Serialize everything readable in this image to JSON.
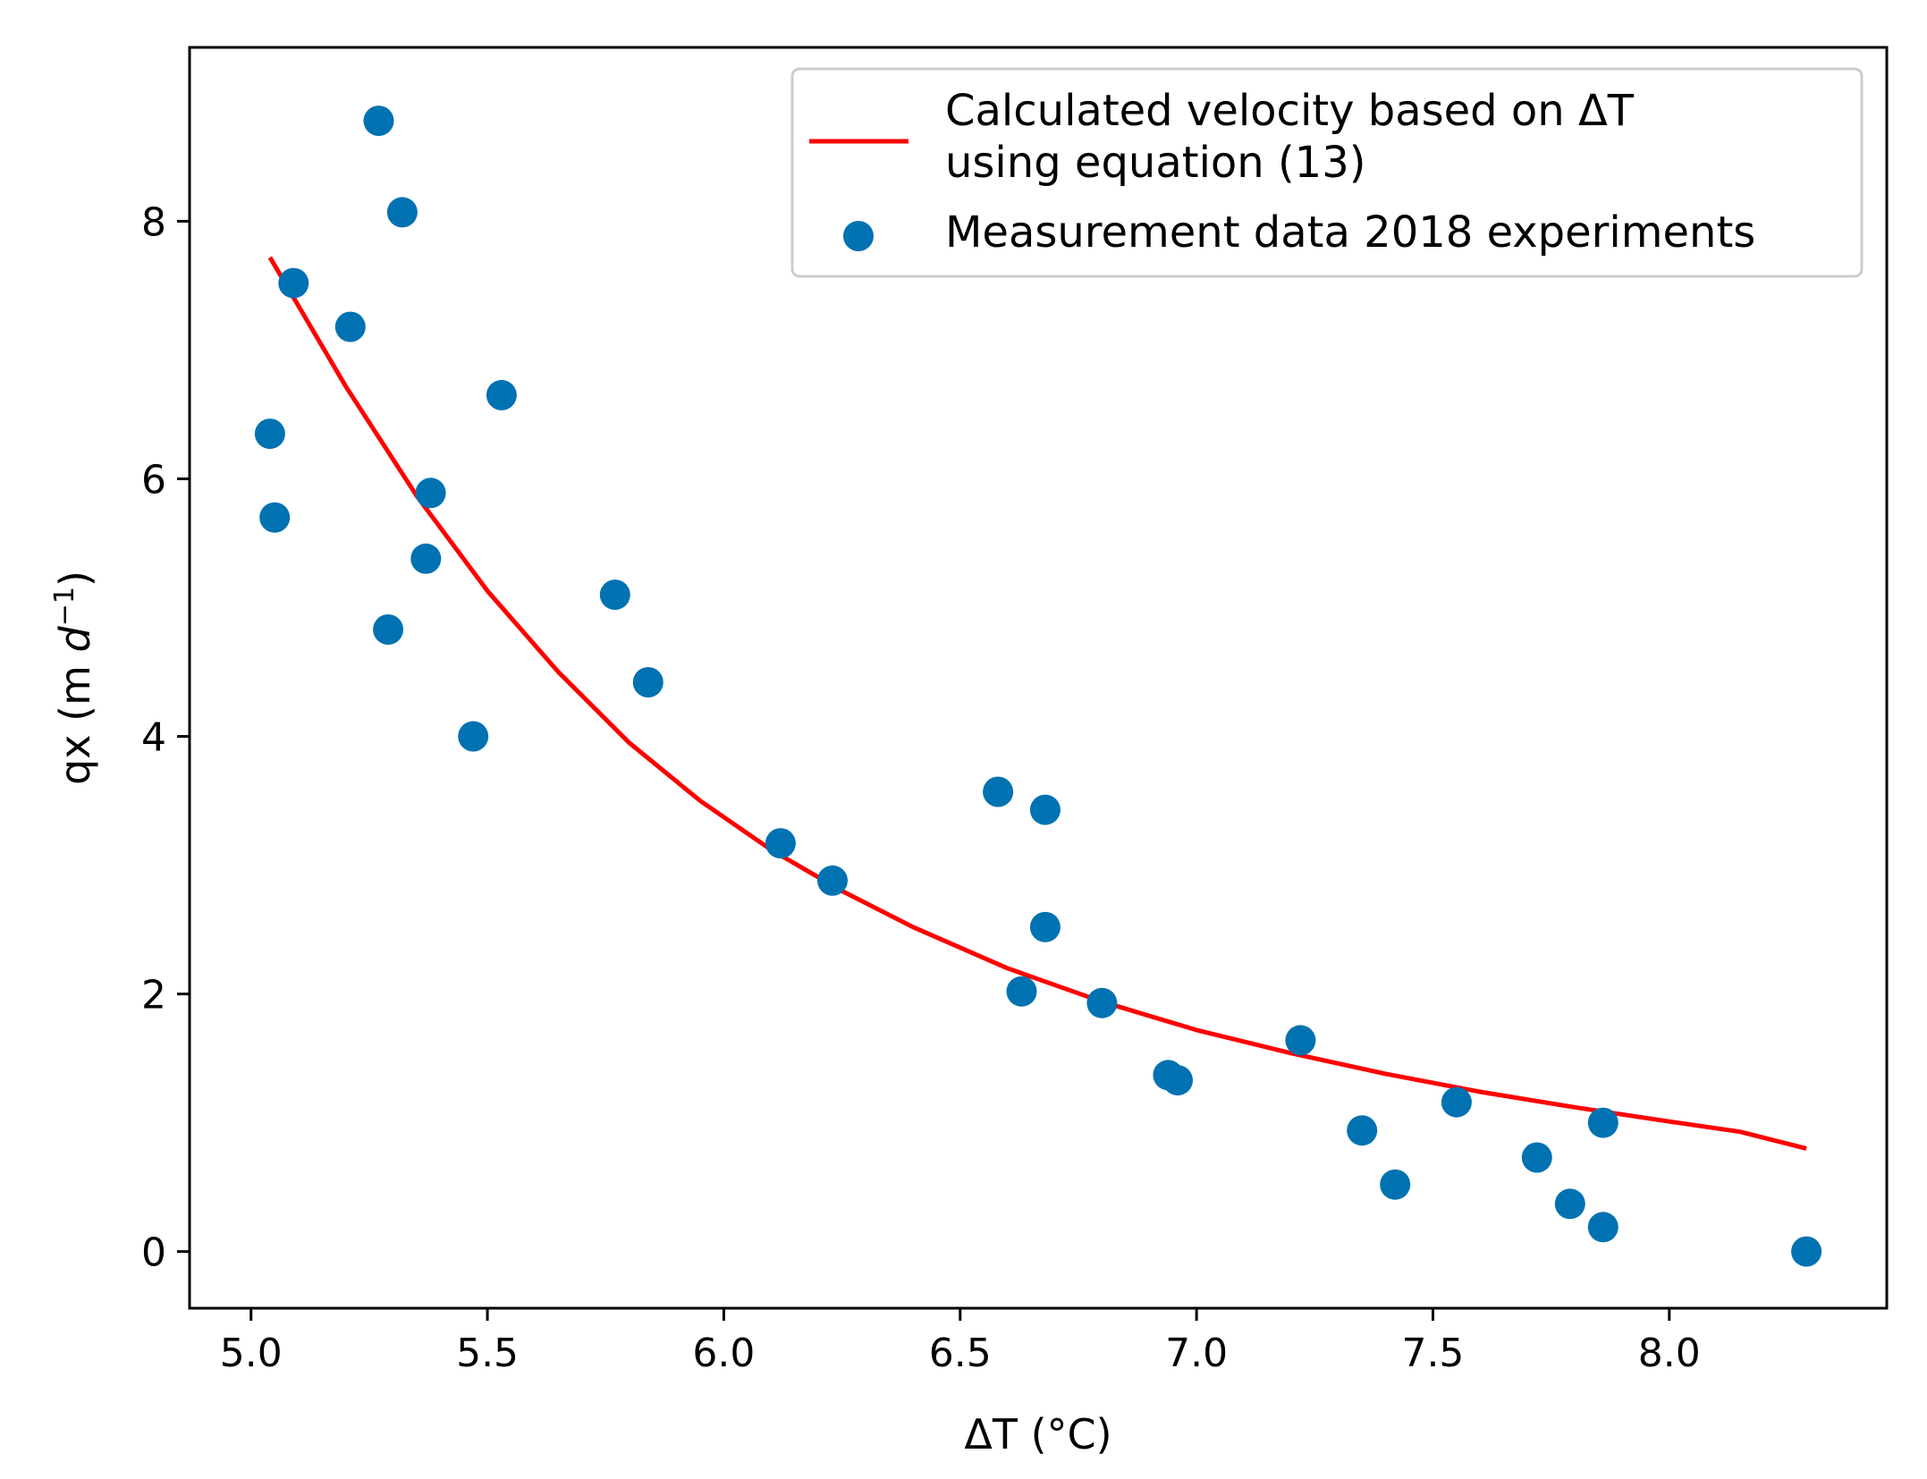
{
  "chart_data": {
    "type": "scatter",
    "title": "",
    "xlabel": "ΔT (°C)",
    "ylabel_parts": {
      "prefix": "qx (m ",
      "italic": "d",
      "sup": "−1",
      "suffix": ")"
    },
    "xlim": [
      4.87,
      8.46
    ],
    "ylim": [
      -0.44,
      9.35
    ],
    "xticks": [
      5.0,
      5.5,
      6.0,
      6.5,
      7.0,
      7.5,
      8.0
    ],
    "xtick_labels": [
      "5.0",
      "5.5",
      "6.0",
      "6.5",
      "7.0",
      "7.5",
      "8.0"
    ],
    "yticks": [
      0,
      2,
      4,
      6,
      8
    ],
    "ytick_labels": [
      "0",
      "2",
      "4",
      "6",
      "8"
    ],
    "grid": false,
    "legend_position": "top-right",
    "legend": [
      {
        "marker": "line",
        "label_lines": [
          "Calculated velocity based on ΔT",
          "using equation (13)"
        ]
      },
      {
        "marker": "dot",
        "label_lines": [
          "Measurement data 2018 experiments"
        ]
      }
    ],
    "series": [
      {
        "name": "Calculated velocity based on ΔT using equation (13)",
        "kind": "line",
        "color": "#ff0000",
        "x": [
          5.04,
          5.2,
          5.35,
          5.5,
          5.65,
          5.8,
          5.95,
          6.1,
          6.25,
          6.4,
          6.6,
          6.8,
          7.0,
          7.2,
          7.4,
          7.6,
          7.8,
          8.0,
          8.15,
          8.29
        ],
        "y": [
          7.72,
          6.72,
          5.87,
          5.13,
          4.5,
          3.95,
          3.5,
          3.12,
          2.8,
          2.52,
          2.2,
          1.94,
          1.72,
          1.54,
          1.38,
          1.24,
          1.12,
          1.01,
          0.93,
          0.8
        ]
      },
      {
        "name": "Measurement data 2018 experiments",
        "kind": "scatter",
        "color": "#0072b2",
        "x": [
          5.04,
          5.05,
          5.09,
          5.21,
          5.27,
          5.29,
          5.32,
          5.37,
          5.38,
          5.47,
          5.53,
          5.77,
          5.84,
          6.12,
          6.23,
          6.58,
          6.63,
          6.68,
          6.68,
          6.8,
          6.94,
          6.96,
          7.22,
          7.35,
          7.42,
          7.55,
          7.72,
          7.79,
          7.86,
          7.86,
          8.29
        ],
        "y": [
          6.35,
          5.7,
          7.52,
          7.18,
          8.78,
          4.83,
          8.07,
          5.38,
          5.89,
          4.0,
          6.65,
          5.1,
          4.42,
          3.17,
          2.88,
          3.57,
          2.02,
          3.43,
          2.52,
          1.93,
          1.37,
          1.33,
          1.64,
          0.94,
          0.52,
          1.16,
          0.73,
          0.37,
          0.19,
          1.0,
          0.0
        ]
      }
    ]
  }
}
